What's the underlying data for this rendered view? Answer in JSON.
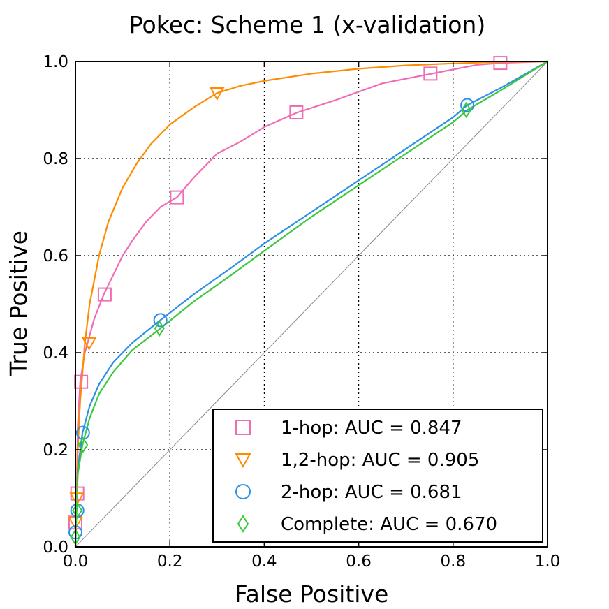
{
  "chart_data": {
    "type": "line",
    "title": "Pokec: Scheme 1 (x-validation)",
    "xlabel": "False Positive",
    "ylabel": "True Positive",
    "xlim": [
      0.0,
      1.0
    ],
    "ylim": [
      0.0,
      1.0
    ],
    "xticks": [
      "0.0",
      "0.2",
      "0.4",
      "0.6",
      "0.8",
      "1.0"
    ],
    "yticks": [
      "0.0",
      "0.2",
      "0.4",
      "0.6",
      "0.8",
      "1.0"
    ],
    "grid": true,
    "legend_position": "bottom-right",
    "diagonal_reference": true,
    "series": [
      {
        "name": "1-hop: AUC = 0.847",
        "color": "#f06db5",
        "marker": "square",
        "x": [
          0.0,
          0.002,
          0.005,
          0.01,
          0.02,
          0.04,
          0.06,
          0.08,
          0.1,
          0.12,
          0.15,
          0.18,
          0.215,
          0.25,
          0.3,
          0.35,
          0.4,
          0.47,
          0.55,
          0.65,
          0.755,
          0.85,
          0.9,
          1.0
        ],
        "y": [
          0.0,
          0.08,
          0.25,
          0.34,
          0.4,
          0.47,
          0.52,
          0.56,
          0.6,
          0.63,
          0.67,
          0.7,
          0.72,
          0.76,
          0.81,
          0.835,
          0.865,
          0.895,
          0.92,
          0.955,
          0.975,
          0.993,
          0.997,
          1.0
        ],
        "markers_x": [
          0.0,
          0.004,
          0.012,
          0.062,
          0.215,
          0.468,
          0.752,
          0.9
        ],
        "markers_y": [
          0.05,
          0.11,
          0.34,
          0.52,
          0.72,
          0.895,
          0.975,
          0.997
        ]
      },
      {
        "name": "1,2-hop: AUC = 0.905",
        "color": "#ff8c00",
        "marker": "triangle-down",
        "x": [
          0.0,
          0.005,
          0.01,
          0.02,
          0.03,
          0.05,
          0.07,
          0.1,
          0.13,
          0.16,
          0.2,
          0.25,
          0.3,
          0.35,
          0.4,
          0.5,
          0.6,
          0.7,
          0.8,
          0.9,
          1.0
        ],
        "y": [
          0.0,
          0.2,
          0.3,
          0.42,
          0.5,
          0.6,
          0.67,
          0.74,
          0.79,
          0.83,
          0.87,
          0.905,
          0.935,
          0.95,
          0.96,
          0.975,
          0.985,
          0.992,
          0.996,
          0.999,
          1.0
        ],
        "markers_x": [
          0.0,
          0.003,
          0.029,
          0.3
        ],
        "markers_y": [
          0.05,
          0.1,
          0.42,
          0.935
        ]
      },
      {
        "name": "2-hop: AUC = 0.681",
        "color": "#2a90e8",
        "marker": "circle",
        "x": [
          0.0,
          0.005,
          0.015,
          0.03,
          0.05,
          0.08,
          0.12,
          0.18,
          0.25,
          0.33,
          0.4,
          0.5,
          0.6,
          0.7,
          0.8,
          0.83,
          0.9,
          1.0
        ],
        "y": [
          0.0,
          0.16,
          0.235,
          0.29,
          0.335,
          0.38,
          0.42,
          0.467,
          0.52,
          0.575,
          0.625,
          0.69,
          0.755,
          0.82,
          0.885,
          0.91,
          0.945,
          1.0
        ],
        "markers_x": [
          0.0,
          0.004,
          0.016,
          0.18,
          0.83
        ],
        "markers_y": [
          0.03,
          0.075,
          0.235,
          0.467,
          0.91
        ]
      },
      {
        "name": "Complete: AUC = 0.670",
        "color": "#3cc83c",
        "marker": "diamond",
        "x": [
          0.0,
          0.005,
          0.015,
          0.03,
          0.05,
          0.08,
          0.12,
          0.18,
          0.25,
          0.33,
          0.4,
          0.5,
          0.6,
          0.7,
          0.8,
          0.83,
          0.9,
          1.0
        ],
        "y": [
          0.0,
          0.15,
          0.21,
          0.265,
          0.315,
          0.36,
          0.405,
          0.45,
          0.505,
          0.56,
          0.61,
          0.68,
          0.745,
          0.81,
          0.875,
          0.9,
          0.94,
          1.0
        ],
        "markers_x": [
          0.0,
          0.004,
          0.016,
          0.178,
          0.828
        ],
        "markers_y": [
          0.02,
          0.075,
          0.21,
          0.45,
          0.9
        ]
      }
    ]
  }
}
